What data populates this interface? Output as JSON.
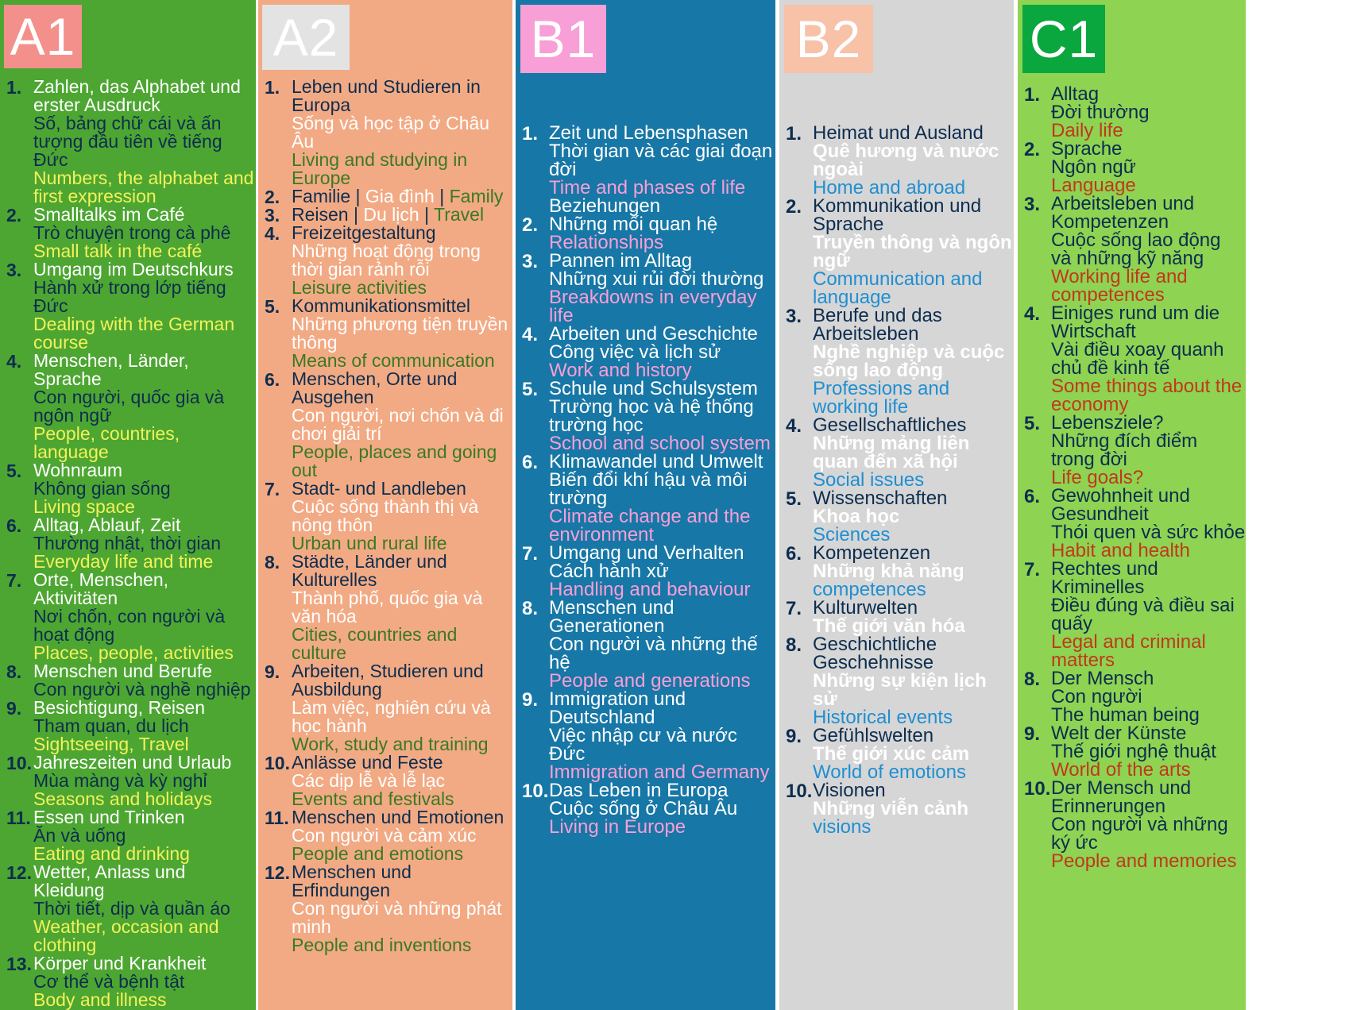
{
  "levels": [
    {
      "level": "A1",
      "colors": {
        "bg": "#4da632",
        "badge": "#f4908c",
        "de": "#ffffff",
        "vi": "#0d2d4f",
        "en": "#f2f25a",
        "num": "#0d2d4f"
      },
      "topics": [
        {
          "num": "1.",
          "de": "Zahlen, das Alphabet und erster Ausdruck",
          "vi": "Số, bảng chữ cái và ấn tượng đầu tiên về tiếng Đức",
          "en": "Numbers, the alphabet and first expression"
        },
        {
          "num": "2.",
          "de": "Smalltalks im Café",
          "vi": "Trò chuyện trong cà phê",
          "en": "Small talk in the café"
        },
        {
          "num": "3.",
          "de": "Umgang im Deutschkurs",
          "vi": "Hành xử trong lớp tiếng Đức",
          "en": "Dealing with the German course"
        },
        {
          "num": "4.",
          "de": "Menschen, Länder, Sprache",
          "vi": "Con người, quốc gia và ngôn ngữ",
          "en": "People, countries, language"
        },
        {
          "num": "5.",
          "de": "Wohnraum",
          "vi": "Không gian sống",
          "en": "Living space"
        },
        {
          "num": "6.",
          "de": "Alltag, Ablauf, Zeit",
          "vi": "Thường nhật, thời gian",
          "en": "Everyday life and time"
        },
        {
          "num": "7.",
          "de": "Orte, Menschen, Aktivitäten",
          "vi": "Nơi chốn, con người và hoạt động",
          "en": "Places, people, activities"
        },
        {
          "num": "8.",
          "de": "Menschen und Berufe",
          "vi": "Con người và nghề nghiệp",
          "en": ""
        },
        {
          "num": "9.",
          "de": "Besichtigung, Reisen",
          "vi": "Tham quan, du lịch",
          "en": "Sightseeing, Travel"
        },
        {
          "num": "10.",
          "de": "Jahreszeiten und Urlaub",
          "vi": "Mùa màng và kỳ nghỉ",
          "en": "Seasons and holidays"
        },
        {
          "num": "11.",
          "de": "Essen und Trinken",
          "vi": "Ăn và uống",
          "en": "Eating and drinking"
        },
        {
          "num": "12.",
          "de": "Wetter, Anlass und Kleidung",
          "vi": "Thời tiết, dịp và quần áo",
          "en": "Weather, occasion and clothing"
        },
        {
          "num": "13.",
          "de": "Körper und Krankheit",
          "vi": "Cơ thể và bệnh tật",
          "en": "Body and illness"
        }
      ]
    },
    {
      "level": "A2",
      "colors": {
        "bg": "#f2aa84",
        "badge": "#e3e3e3",
        "de": "#0d2d4f",
        "vi": "#ffffff",
        "en": "#3a7a23",
        "num": "#0d2d4f"
      },
      "topics": [
        {
          "num": "1.",
          "de": "Leben und Studieren in Europa",
          "vi": "Sống và học tập ở Châu Âu",
          "en": "Living and studying in Europe"
        },
        {
          "num": "2.",
          "de": "Familie",
          "vi": "Gia đình",
          "en": "Family",
          "inline": true
        },
        {
          "num": "3.",
          "de": "Reisen",
          "vi": "Du lịch",
          "en": "Travel",
          "inline": true
        },
        {
          "num": "4.",
          "de": "Freizeitgestaltung",
          "vi": "Những hoạt động trong thời gian rảnh rỗi",
          "en": "Leisure activities"
        },
        {
          "num": "5.",
          "de": "Kommunikationsmittel",
          "vi": "Những phương tiện truyền thông",
          "en": "Means of communication"
        },
        {
          "num": "6.",
          "de": "Menschen, Orte und Ausgehen",
          "vi": "Con người, nơi chốn và đi chơi giải trí",
          "en": "People, places and going out"
        },
        {
          "num": "7.",
          "de": "Stadt- und Landleben",
          "vi": "Cuộc sống thành thị và nông thôn",
          "en": "Urban und rural life"
        },
        {
          "num": "8.",
          "de": "Städte, Länder und Kulturelles",
          "vi": "Thành phố, quốc gia và văn hóa",
          "en": "Cities, countries and culture"
        },
        {
          "num": "9.",
          "de": "Arbeiten, Studieren und Ausbildung",
          "vi": "Làm việc, nghiên cứu và học hành",
          "en": "Work, study and training"
        },
        {
          "num": "10.",
          "de": "Anlässe und Feste",
          "vi": "Các dịp lễ và lễ lạc",
          "en": "Events and festivals"
        },
        {
          "num": "11.",
          "de": "Menschen und Emotionen",
          "vi": "Con người và cảm xúc",
          "en": "People and emotions"
        },
        {
          "num": "12.",
          "de": "Menschen und Erfindungen",
          "vi": "Con người và những phát minh",
          "en": "People and inventions"
        }
      ]
    },
    {
      "level": "B1",
      "colors": {
        "bg": "#1777a6",
        "badge": "#f79fd6",
        "de": "#ffffff",
        "vi": "#ffffff",
        "en": "#f79fd6",
        "num": "#ffffff"
      },
      "topics": [
        {
          "num": "1.",
          "de": "Zeit und Lebensphasen",
          "vi": "Thời gian và các giai đoạn đời",
          "en": "Time and phases of life"
        },
        {
          "num": "",
          "de": "Beziehungen",
          "vi": "",
          "en": ""
        },
        {
          "num": "2.",
          "de": "Những mối quan hệ",
          "vi": "",
          "en": "Relationships"
        },
        {
          "num": "3.",
          "de": "Pannen im Alltag",
          "vi": "Những xui rủi đời thường",
          "en": "Breakdowns in everyday life"
        },
        {
          "num": "4.",
          "de": "Arbeiten und Geschichte",
          "vi": "Công việc và lịch sử",
          "en": "Work and history"
        },
        {
          "num": "5.",
          "de": "Schule und Schulsystem",
          "vi": "Trường học và hệ thống trường học",
          "en": "School and school system"
        },
        {
          "num": "6.",
          "de": "Klimawandel und Umwelt",
          "vi": "Biến đổi khí hậu và môi trường",
          "en": "Climate change and the environment"
        },
        {
          "num": "7.",
          "de": "Umgang und Verhalten",
          "vi": "Cách hành xử",
          "en": "Handling and behaviour"
        },
        {
          "num": "8.",
          "de": "Menschen und Generationen",
          "vi": "Con người và những thế hệ",
          "en": "People and generations"
        },
        {
          "num": "9.",
          "de": "Immigration und Deutschland",
          "vi": "Việc nhập cư và nước Đức",
          "en": "Immigration and Germany"
        },
        {
          "num": "10.",
          "de": "Das Leben in Europa",
          "vi": "Cuộc sống ở Châu Âu",
          "en": "Living in Europe"
        }
      ]
    },
    {
      "level": "B2",
      "colors": {
        "bg": "#d6d6d6",
        "badge": "#f7c2a8",
        "de": "#0d2d4f",
        "vi": "#ffffff",
        "en": "#1f8fd2",
        "num": "#0d2d4f"
      },
      "topics": [
        {
          "num": "1.",
          "de": "Heimat und Ausland",
          "vi": "Quê hương và nước ngoài",
          "en": "Home and abroad"
        },
        {
          "num": "2.",
          "de": "Kommunikation und Sprache",
          "vi": "Truyền thông và ngôn ngữ",
          "en": "Communication and language"
        },
        {
          "num": "3.",
          "de": "Berufe und das Arbeitsleben",
          "vi": "Nghề nghiệp và cuộc sống lao động",
          "en": "Professions and working life"
        },
        {
          "num": "4.",
          "de": "Gesellschaftliches",
          "vi": "Những mảng liên quan đến xã hội",
          "en": "Social issues"
        },
        {
          "num": "5.",
          "de": "Wissenschaften",
          "vi": "Khoa học",
          "en": "Sciences"
        },
        {
          "num": "6.",
          "de": "Kompetenzen",
          "vi": "Những khả năng",
          "en": "competences"
        },
        {
          "num": "7.",
          "de": "Kulturwelten",
          "vi": "Thế giới văn hóa",
          "en": ""
        },
        {
          "num": "8.",
          "de": "Geschichtliche Geschehnisse",
          "vi": "Những sự kiện lịch sử",
          "en": "Historical events"
        },
        {
          "num": "9.",
          "de": "Gefühlswelten",
          "vi": "Thế giới xúc cảm",
          "en": "World of emotions"
        },
        {
          "num": "10.",
          "de": "Visionen",
          "vi": "Những viễn cảnh",
          "en": "visions"
        }
      ]
    },
    {
      "level": "C1",
      "colors": {
        "bg": "#8ed352",
        "badge": "#0aa63e",
        "de": "#0d2d4f",
        "vi": "#0d2d4f",
        "en": "#c0391b",
        "num": "#0d2d4f"
      },
      "topics": [
        {
          "num": "1.",
          "de": "Alltag",
          "vi": "Đời thường",
          "en": "Daily life"
        },
        {
          "num": "2.",
          "de": "Sprache",
          "vi": "Ngôn ngữ",
          "en": "Language"
        },
        {
          "num": "3.",
          "de": "Arbeitsleben und Kompetenzen",
          "vi": "Cuộc sống lao động và những kỹ năng",
          "en": "Working life and competences"
        },
        {
          "num": "4.",
          "de": "Einiges rund um die Wirtschaft",
          "vi": "Vài điều xoay quanh chủ đề kinh tế",
          "en": "Some things about the economy"
        },
        {
          "num": "5.",
          "de": "Lebensziele?",
          "vi": "Những đích điểm trong đời",
          "en": "Life goals?"
        },
        {
          "num": "6.",
          "de": "Gewohnheit und Gesundheit",
          "vi": "Thói quen và sức khỏe",
          "en": "Habit and health"
        },
        {
          "num": "7.",
          "de": "Rechtes und Kriminelles",
          "vi": "Điều đúng và điều sai quấy",
          "en": "Legal and criminal matters"
        },
        {
          "num": "8.",
          "de": "Der Mensch",
          "vi": "Con người",
          "en": "",
          "extra": "The human being"
        },
        {
          "num": "9.",
          "de": "Welt der Künste",
          "vi": "Thế giới nghệ thuật",
          "en": "World of the arts"
        },
        {
          "num": "10.",
          "de": "Der Mensch und Erinnerungen",
          "vi": "Con người và những ký ức",
          "en": "People and memories"
        }
      ]
    }
  ]
}
